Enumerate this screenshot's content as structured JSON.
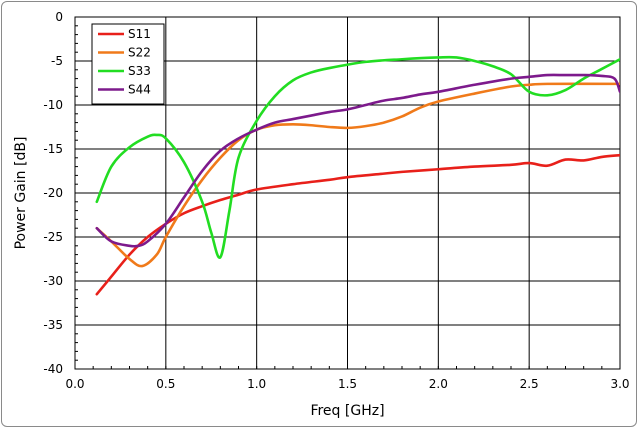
{
  "chart_data": {
    "type": "line",
    "xlabel": "Freq [GHz]",
    "ylabel": "Power Gain [dB]",
    "xlim": [
      0.0,
      3.0
    ],
    "ylim": [
      -40,
      0
    ],
    "x_ticks": [
      "0.0",
      "0.5",
      "1.0",
      "1.5",
      "2.0",
      "2.5",
      "3.0"
    ],
    "y_ticks": [
      "0",
      "-5",
      "-10",
      "-15",
      "-20",
      "-25",
      "-30",
      "-35",
      "-40"
    ],
    "x_tick_values": [
      0.0,
      0.5,
      1.0,
      1.5,
      2.0,
      2.5,
      3.0
    ],
    "y_tick_values": [
      0,
      -5,
      -10,
      -15,
      -20,
      -25,
      -30,
      -35,
      -40
    ],
    "grid": true,
    "legend_position": "top-left",
    "series": [
      {
        "name": "S11",
        "color": "#e8201a",
        "x": [
          0.12,
          0.2,
          0.3,
          0.4,
          0.5,
          0.6,
          0.7,
          0.8,
          0.9,
          1.0,
          1.2,
          1.4,
          1.5,
          1.7,
          1.8,
          2.0,
          2.2,
          2.4,
          2.5,
          2.6,
          2.7,
          2.8,
          2.9,
          3.0
        ],
        "y": [
          -31.5,
          -29.5,
          -27.0,
          -25.0,
          -23.5,
          -22.3,
          -21.5,
          -20.8,
          -20.2,
          -19.6,
          -19.0,
          -18.5,
          -18.2,
          -17.8,
          -17.6,
          -17.3,
          -17.0,
          -16.8,
          -16.6,
          -16.9,
          -16.2,
          -16.3,
          -15.9,
          -15.7
        ]
      },
      {
        "name": "S22",
        "color": "#f07a1a",
        "x": [
          0.12,
          0.2,
          0.3,
          0.37,
          0.45,
          0.5,
          0.6,
          0.7,
          0.8,
          0.9,
          1.0,
          1.1,
          1.2,
          1.3,
          1.4,
          1.5,
          1.6,
          1.7,
          1.8,
          1.9,
          2.0,
          2.2,
          2.4,
          2.5,
          2.6,
          3.0
        ],
        "y": [
          -24.0,
          -25.5,
          -27.5,
          -28.3,
          -27.0,
          -25.0,
          -21.5,
          -18.5,
          -16.0,
          -14.0,
          -12.8,
          -12.3,
          -12.2,
          -12.3,
          -12.5,
          -12.6,
          -12.4,
          -12.0,
          -11.3,
          -10.3,
          -9.6,
          -8.7,
          -7.9,
          -7.7,
          -7.6,
          -7.6
        ]
      },
      {
        "name": "S33",
        "color": "#22dd22",
        "x": [
          0.12,
          0.2,
          0.3,
          0.4,
          0.45,
          0.5,
          0.6,
          0.7,
          0.75,
          0.8,
          0.85,
          0.9,
          1.0,
          1.1,
          1.2,
          1.3,
          1.4,
          1.6,
          1.8,
          2.0,
          2.1,
          2.2,
          2.3,
          2.4,
          2.5,
          2.6,
          2.7,
          2.8,
          2.9,
          3.0
        ],
        "y": [
          -21.0,
          -17.0,
          -14.8,
          -13.6,
          -13.4,
          -13.8,
          -16.5,
          -21.0,
          -24.5,
          -27.3,
          -22.0,
          -16.0,
          -11.8,
          -9.0,
          -7.2,
          -6.3,
          -5.8,
          -5.1,
          -4.8,
          -4.6,
          -4.6,
          -5.0,
          -5.6,
          -6.5,
          -8.5,
          -8.9,
          -8.3,
          -7.0,
          -5.9,
          -4.8
        ]
      },
      {
        "name": "S44",
        "color": "#7d1a8c",
        "x": [
          0.12,
          0.2,
          0.3,
          0.35,
          0.4,
          0.5,
          0.6,
          0.7,
          0.8,
          0.9,
          1.0,
          1.1,
          1.2,
          1.3,
          1.4,
          1.5,
          1.6,
          1.7,
          1.8,
          1.9,
          2.0,
          2.2,
          2.4,
          2.5,
          2.6,
          2.7,
          2.8,
          2.9,
          2.97,
          3.0
        ],
        "y": [
          -24.0,
          -25.5,
          -26.0,
          -26.0,
          -25.5,
          -23.5,
          -20.5,
          -17.5,
          -15.2,
          -13.8,
          -12.8,
          -12.0,
          -11.6,
          -11.2,
          -10.8,
          -10.5,
          -10.0,
          -9.5,
          -9.2,
          -8.8,
          -8.5,
          -7.7,
          -7.0,
          -6.8,
          -6.6,
          -6.6,
          -6.6,
          -6.7,
          -7.0,
          -8.5
        ]
      }
    ]
  }
}
